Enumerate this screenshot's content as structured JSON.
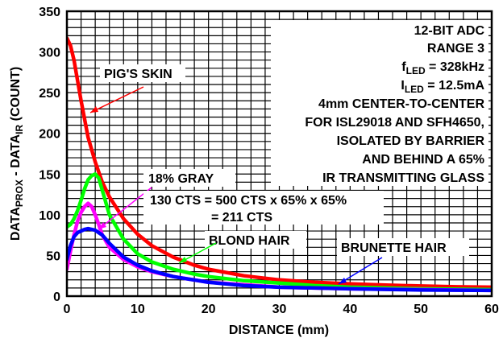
{
  "chart_data": {
    "type": "line",
    "xlabel": "DISTANCE (mm)",
    "ylabel": {
      "base1": "DATA",
      "sub1": "PROX",
      "mid": " - DATA",
      "sub2": "IR",
      "tail": " (COUNT)"
    },
    "xlim": [
      0,
      60
    ],
    "ylim": [
      0,
      350
    ],
    "x_ticks": [
      "0",
      "10",
      "20",
      "30",
      "40",
      "50",
      "60"
    ],
    "y_ticks": [
      "0",
      "50",
      "100",
      "150",
      "200",
      "250",
      "300",
      "350"
    ],
    "grid": true,
    "conditions": {
      "line1": "12-BIT ADC",
      "line2": "RANGE 3",
      "fled": {
        "base": "f",
        "sub": "LED",
        "tail": " = 328kHz"
      },
      "iled": {
        "base": "I",
        "sub": "LED",
        "tail": " = 12.5mA"
      },
      "line5": "4mm CENTER-TO-CENTER",
      "line6": "FOR ISL29018 AND SFH4650,",
      "line7": "ISOLATED BY BARRIER",
      "line8": "AND BEHIND A 65%",
      "line9": "IR TRANSMITTING GLASS"
    },
    "series": [
      {
        "name": "PIG'S SKIN",
        "color": "#ff0000",
        "x": [
          0,
          0.5,
          1,
          1.5,
          2,
          3,
          4,
          5,
          6,
          8,
          10,
          12,
          15,
          18,
          20,
          25,
          30,
          35,
          40,
          45,
          50,
          55,
          60
        ],
        "y": [
          317,
          308,
          290,
          265,
          240,
          195,
          165,
          140,
          122,
          95,
          76,
          62,
          48,
          38,
          33,
          25,
          20,
          17,
          15,
          13.5,
          12.5,
          11.5,
          11
        ]
      },
      {
        "name": "BLOND HAIR",
        "color": "#00ff00",
        "x": [
          0,
          0.5,
          1,
          1.5,
          2,
          2.5,
          3,
          3.5,
          4,
          4.5,
          5,
          6,
          8,
          10,
          12,
          15,
          18,
          20,
          25,
          30,
          35,
          40,
          45,
          50,
          55,
          60
        ],
        "y": [
          85,
          88,
          95,
          105,
          118,
          132,
          143,
          148,
          150,
          145,
          130,
          100,
          70,
          52,
          42,
          33,
          27,
          24,
          19,
          16,
          13,
          11,
          10,
          9,
          8.5,
          8
        ]
      },
      {
        "name": "18% GRAY",
        "color": "#ff00ff",
        "x": [
          0,
          0.5,
          1,
          1.5,
          2,
          2.5,
          3,
          3.5,
          4,
          4.5,
          5,
          6,
          8,
          10,
          12,
          15,
          20,
          25,
          30,
          40,
          50,
          60
        ],
        "y": [
          33,
          55,
          75,
          92,
          103,
          110,
          114,
          110,
          100,
          88,
          75,
          60,
          45,
          36,
          30,
          24,
          17,
          14,
          11,
          9,
          8,
          7
        ]
      },
      {
        "name": "BRUNETTE HAIR",
        "color": "#0000ff",
        "x": [
          0,
          0.5,
          1,
          1.5,
          2,
          2.5,
          3,
          4,
          5,
          6,
          8,
          10,
          12,
          15,
          20,
          25,
          30,
          40,
          50,
          60
        ],
        "y": [
          45,
          62,
          73,
          78,
          80,
          82,
          83,
          81,
          75,
          65,
          48,
          38,
          31,
          24,
          17,
          13,
          11,
          9,
          7.5,
          7
        ]
      }
    ],
    "annotations": {
      "pig": "PIG'S SKIN",
      "gray": "18% GRAY",
      "cts1": "130 CTS = 500 CTS x 65% x 65%",
      "cts2": "= 211 CTS",
      "blond": "BLOND HAIR",
      "brunette": "BRUNETTE HAIR"
    }
  }
}
